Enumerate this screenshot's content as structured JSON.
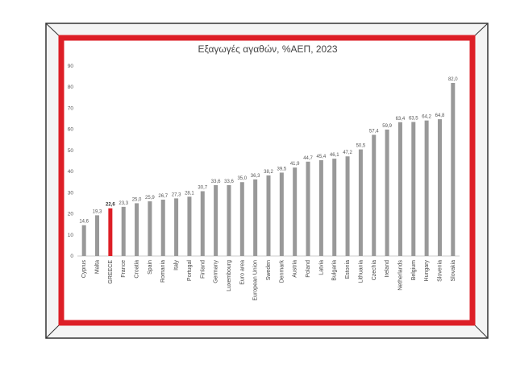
{
  "chart_data": {
    "type": "bar",
    "title": "Εξαγωγές αγαθών, %ΑΕΠ, 2023",
    "xlabel": "",
    "ylabel": "",
    "ylim": [
      0,
      90
    ],
    "yticks": [
      0,
      10,
      20,
      30,
      40,
      50,
      60,
      70,
      80,
      90
    ],
    "grid": false,
    "legend": "none",
    "categories": [
      "Cyprus",
      "Malta",
      "GREECE",
      "France",
      "Croatia",
      "Spain",
      "Romania",
      "Italy",
      "Portugal",
      "Finland",
      "Germany",
      "Luxembourg",
      "Euro area",
      "European Union",
      "Sweden",
      "Denmark",
      "Austria",
      "Poland",
      "Latvia",
      "Bulgaria",
      "Estonia",
      "Lithuania",
      "Czechia",
      "Ireland",
      "Netherlands",
      "Belgium",
      "Hungary",
      "Slovenia",
      "Slovakia"
    ],
    "values": [
      14.6,
      19.3,
      22.6,
      23.3,
      25.0,
      25.9,
      26.7,
      27.3,
      28.1,
      30.7,
      33.6,
      33.6,
      35.0,
      36.3,
      38.2,
      39.5,
      41.9,
      44.7,
      45.4,
      46.1,
      47.2,
      50.5,
      57.4,
      59.9,
      63.4,
      63.5,
      64.2,
      64.8,
      82.0
    ],
    "value_labels": [
      "14,6",
      "19,3",
      "22,6",
      "23,3",
      "25,0",
      "25,9",
      "26,7",
      "27,3",
      "28,1",
      "30,7",
      "33,6",
      "33,6",
      "35,0",
      "36,3",
      "38,2",
      "39,5",
      "41,9",
      "44,7",
      "45,4",
      "46,1",
      "47,2",
      "50,5",
      "57,4",
      "59,9",
      "63,4",
      "63,5",
      "64,2",
      "64,8",
      "82,0"
    ],
    "highlight": "GREECE",
    "colors": {
      "bar": "#999999",
      "highlight": "#dd1e26",
      "frame": "#dd1e26"
    }
  }
}
